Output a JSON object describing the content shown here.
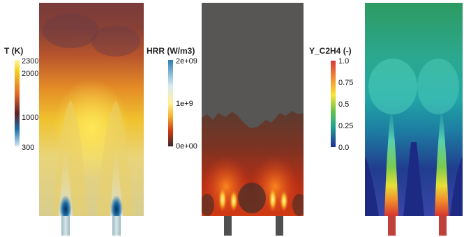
{
  "panels": [
    {
      "id": "temperature",
      "colorbar": {
        "title": "T (K)",
        "ticks": [
          "2300",
          "2000",
          "1000",
          "300"
        ],
        "colors": [
          "#fff3a0",
          "#f7d21e",
          "#e0672a",
          "#5b1f24",
          "#1b6fa8",
          "#d7e9f2"
        ]
      }
    },
    {
      "id": "heat-release-rate",
      "colorbar": {
        "title": "HRR (W/m3)",
        "ticks": [
          "2e+09",
          "1e+9",
          "0e+00"
        ],
        "colors": [
          "#2d7fb8",
          "#d8ecf1",
          "#fff09a",
          "#f3b431",
          "#d43a13",
          "#3a2a26"
        ]
      }
    },
    {
      "id": "ethylene-mass-fraction",
      "colorbar": {
        "title": "Y_C2H4 (-)",
        "ticks": [
          "1.0",
          "0.75",
          "0.5",
          "0.25",
          "0.0"
        ],
        "colors": [
          "#d73b3b",
          "#f48c32",
          "#f7e534",
          "#6cc24a",
          "#23a88f",
          "#1f2f95"
        ]
      }
    }
  ]
}
